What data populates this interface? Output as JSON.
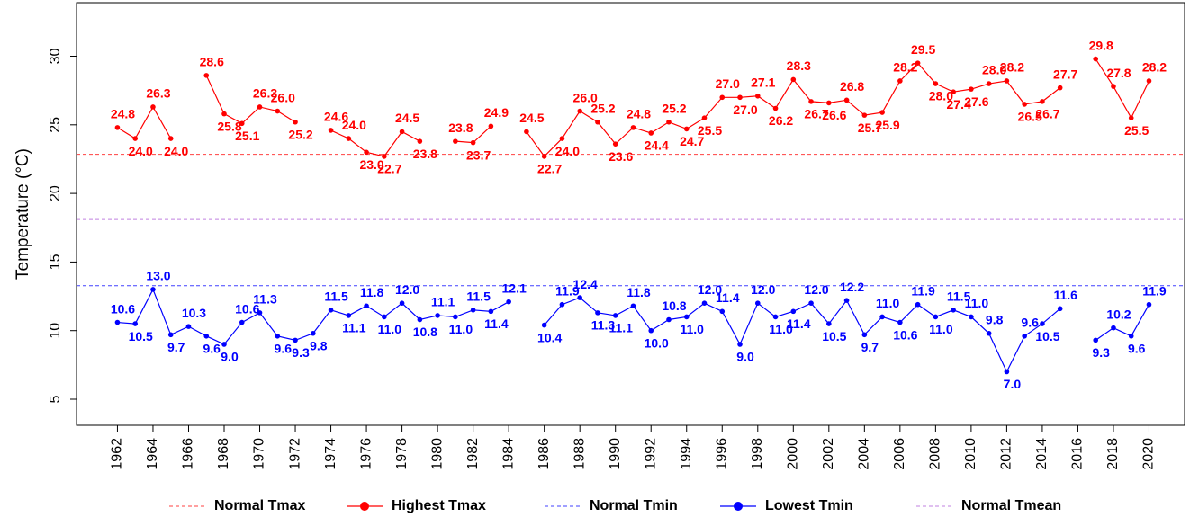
{
  "chart_data": {
    "type": "line",
    "y_label": "Temperature (°C)",
    "x": [
      1962,
      1963,
      1964,
      1965,
      1966,
      1967,
      1968,
      1969,
      1970,
      1971,
      1972,
      1973,
      1974,
      1975,
      1976,
      1977,
      1978,
      1979,
      1980,
      1981,
      1982,
      1983,
      1984,
      1985,
      1986,
      1987,
      1988,
      1989,
      1990,
      1991,
      1992,
      1993,
      1994,
      1995,
      1996,
      1997,
      1998,
      1999,
      2000,
      2001,
      2002,
      2003,
      2004,
      2005,
      2006,
      2007,
      2008,
      2009,
      2010,
      2011,
      2012,
      2013,
      2014,
      2015,
      2016,
      2017,
      2018,
      2019,
      2020
    ],
    "series": [
      {
        "name": "Highest Tmax",
        "color": "#ff0000",
        "values": [
          24.8,
          24.0,
          26.3,
          24.0,
          null,
          28.6,
          25.8,
          25.1,
          26.3,
          26.0,
          25.2,
          null,
          24.6,
          24.0,
          23.0,
          22.7,
          24.5,
          23.8,
          null,
          23.8,
          23.7,
          24.9,
          null,
          24.5,
          22.7,
          24.0,
          26.0,
          25.2,
          23.6,
          24.8,
          24.4,
          25.2,
          24.7,
          25.5,
          27.0,
          27.0,
          27.1,
          26.2,
          28.3,
          26.7,
          26.6,
          26.8,
          25.7,
          25.9,
          28.2,
          29.5,
          28.0,
          27.4,
          27.6,
          28.0,
          28.2,
          26.5,
          26.7,
          27.7,
          null,
          29.8,
          27.8,
          25.5,
          28.2
        ],
        "value_labels": [
          "24.8",
          "24.0",
          "26.3",
          "24.0",
          null,
          "28.6",
          "25.8",
          "25.1",
          "26.3",
          "26.0",
          "25.2",
          null,
          "24.6",
          "24.0",
          "23.0",
          "22.7",
          "24.5",
          "23.8",
          null,
          "23.8",
          "23.7",
          "24.9",
          null,
          "24.5",
          "22.7",
          "24.0",
          "26.0",
          "25.2",
          "23.6",
          "24.8",
          "24.4",
          "25.2",
          "24.7",
          "25.5",
          "27.0",
          "27.0",
          "27.1",
          "26.2",
          "28.3",
          "26.7",
          "26.6",
          "26.8",
          "25.7",
          "25.9",
          "28.2",
          "29.5",
          "28.0",
          "27.4",
          "27.6",
          "28.0",
          "28.2",
          "26.5",
          "26.7",
          "27.7",
          null,
          "29.8",
          "27.8",
          "25.5",
          "28.2"
        ]
      },
      {
        "name": "Lowest Tmin",
        "color": "#0000ff",
        "values": [
          10.6,
          10.5,
          13.0,
          9.7,
          10.3,
          9.6,
          9.0,
          10.6,
          11.3,
          9.6,
          9.3,
          9.8,
          11.5,
          11.1,
          11.8,
          11.0,
          12.0,
          10.8,
          11.1,
          11.0,
          11.5,
          11.4,
          12.1,
          null,
          10.4,
          11.9,
          12.4,
          11.3,
          11.1,
          11.8,
          10.0,
          10.8,
          11.0,
          12.0,
          11.4,
          9.0,
          12.0,
          11.0,
          11.4,
          12.0,
          10.5,
          12.2,
          9.7,
          11.0,
          10.6,
          11.9,
          11.0,
          11.5,
          11.0,
          9.8,
          7.0,
          9.6,
          10.5,
          11.6,
          null,
          9.3,
          10.2,
          9.6,
          11.9
        ],
        "value_labels": [
          "10.6",
          "10.5",
          "13.0",
          "9.7",
          "10.3",
          "9.6",
          "9.0",
          "10.6",
          "11.3",
          "9.6",
          "9.3",
          "9.8",
          "11.5",
          "11.1",
          "11.8",
          "11.0",
          "12.0",
          "10.8",
          "11.1",
          "11.0",
          "11.5",
          "11.4",
          "12.1",
          null,
          "10.4",
          "11.9",
          "12.4",
          "11.3",
          "11.1",
          "11.8",
          "10.0",
          "10.8",
          "11.0",
          "12.0",
          "11.4",
          "9.0",
          "12.0",
          "11.0",
          "11.4",
          "12.0",
          "10.5",
          "12.2",
          "9.7",
          "11.0",
          "10.6",
          "11.9",
          "11.0",
          "11.5",
          "11.0",
          "9.8",
          "7.0",
          "9.6",
          "10.5",
          "11.6",
          null,
          "9.3",
          "10.2",
          "9.6",
          "11.9"
        ]
      }
    ],
    "hlines": [
      {
        "name": "Normal Tmax",
        "value": 22.85,
        "color": "#ff4040"
      },
      {
        "name": "Normal Tmin",
        "value": 13.27,
        "color": "#4040ff"
      },
      {
        "name": "Normal Tmean",
        "value": 18.1,
        "color": "#c080e0"
      }
    ],
    "xlim": [
      1959.7,
      2022.0
    ],
    "xticks": [
      1962,
      1964,
      1966,
      1968,
      1970,
      1972,
      1974,
      1976,
      1978,
      1980,
      1982,
      1984,
      1986,
      1988,
      1990,
      1992,
      1994,
      1996,
      1998,
      2000,
      2002,
      2004,
      2006,
      2008,
      2010,
      2012,
      2014,
      2016,
      2018,
      2020
    ],
    "ylim": [
      3.1,
      33.9
    ],
    "yticks": [
      5,
      10,
      15,
      20,
      25,
      30
    ],
    "legend": "bottom"
  }
}
